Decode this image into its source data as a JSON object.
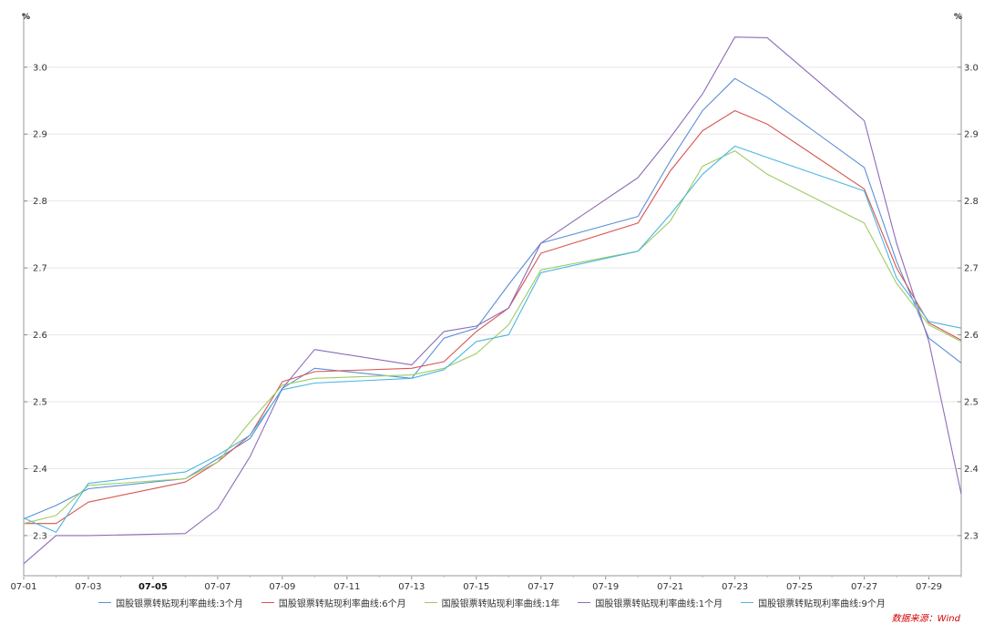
{
  "chart_data": {
    "type": "line",
    "title": "",
    "xlabel": "",
    "ylabel": "%",
    "y_unit_left": "%",
    "y_unit_right": "%",
    "ylim": [
      2.24,
      3.08
    ],
    "yticks": [
      "2.3",
      "2.4",
      "2.5",
      "2.6",
      "2.7",
      "2.8",
      "2.9",
      "3.0"
    ],
    "x_ticks": [
      "07-01",
      "07-03",
      "07-05",
      "07-07",
      "07-09",
      "07-11",
      "07-13",
      "07-15",
      "07-17",
      "07-19",
      "07-21",
      "07-23",
      "07-25",
      "07-27",
      "07-29"
    ],
    "x_tick_bold": "07-05",
    "x_dates": [
      1,
      2,
      3,
      6,
      7,
      8,
      9,
      10,
      13,
      14,
      15,
      16,
      17,
      20,
      21,
      22,
      23,
      24,
      27,
      28,
      29,
      30
    ],
    "x_start": 1,
    "x_end": 30,
    "grid": true,
    "legend_position": "bottom",
    "series": [
      {
        "name": "国股银票转贴现利率曲线:3个月",
        "color": "#5b8fd6",
        "values": [
          2.325,
          2.345,
          2.37,
          2.385,
          2.415,
          2.445,
          2.52,
          2.55,
          2.535,
          2.595,
          2.61,
          2.675,
          2.737,
          2.777,
          2.86,
          2.935,
          2.983,
          2.955,
          2.85,
          2.71,
          2.595,
          2.558
        ]
      },
      {
        "name": "国股银票转贴现利率曲线:6个月",
        "color": "#d9534f",
        "values": [
          2.318,
          2.318,
          2.35,
          2.38,
          2.41,
          2.45,
          2.53,
          2.545,
          2.55,
          2.56,
          2.605,
          2.64,
          2.722,
          2.767,
          2.845,
          2.905,
          2.935,
          2.915,
          2.818,
          2.7,
          2.618,
          2.592
        ]
      },
      {
        "name": "国股银票转贴现利率曲线:1年",
        "color": "#9ccc65",
        "values": [
          2.318,
          2.33,
          2.375,
          2.385,
          2.41,
          2.47,
          2.525,
          2.535,
          2.54,
          2.55,
          2.572,
          2.615,
          2.697,
          2.725,
          2.77,
          2.852,
          2.875,
          2.84,
          2.767,
          2.677,
          2.615,
          2.59
        ]
      },
      {
        "name": "国股银票转贴现利率曲线:1个月",
        "color": "#8e6bb8",
        "values": [
          2.258,
          2.3,
          2.3,
          2.303,
          2.34,
          2.418,
          2.52,
          2.578,
          2.555,
          2.605,
          2.613,
          2.64,
          2.737,
          2.835,
          2.895,
          2.96,
          3.045,
          3.044,
          2.92,
          2.737,
          2.59,
          2.362
        ]
      },
      {
        "name": "国股银票转贴现利率曲线:9个月",
        "color": "#4db6e0",
        "values": [
          2.326,
          2.305,
          2.378,
          2.395,
          2.42,
          2.45,
          2.518,
          2.528,
          2.535,
          2.548,
          2.59,
          2.6,
          2.693,
          2.725,
          2.78,
          2.84,
          2.882,
          2.865,
          2.815,
          2.685,
          2.62,
          2.61
        ]
      }
    ]
  },
  "source_label": "数据来源：Wind"
}
